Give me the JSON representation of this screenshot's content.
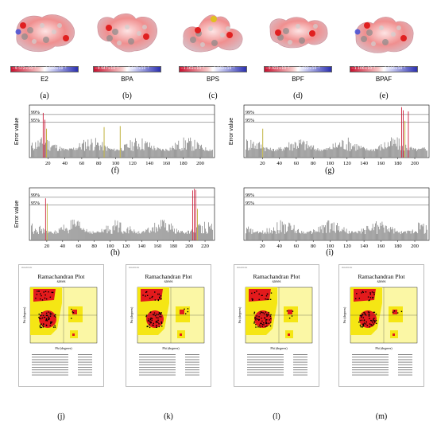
{
  "molecules": [
    {
      "name": "E2",
      "min": "−9.572×10⁻²",
      "max": "9.588×10⁻²",
      "label": "(a)"
    },
    {
      "name": "BPA",
      "min": "−9.947×10⁻²",
      "max": "9.947×10⁻²",
      "label": "(b)"
    },
    {
      "name": "BPS",
      "min": "−1.163×10⁻¹",
      "max": "1.163×10⁻¹",
      "label": "(c)"
    },
    {
      "name": "BPF",
      "min": "−9.922×10⁻²",
      "max": "9.922×10⁻²",
      "label": "(d)"
    },
    {
      "name": "BPAF",
      "min": "−1.106×10⁻¹",
      "max": "1.106×10⁻¹",
      "label": "(e)"
    }
  ],
  "error_panels": [
    {
      "label": "(f)",
      "ylabel": "Error value",
      "thresholds": [
        "99%",
        "95%"
      ],
      "xticks": [
        "20",
        "40",
        "60",
        "80",
        "100",
        "120",
        "140",
        "160",
        "180",
        "200"
      ],
      "xmax": 215,
      "peaks": [
        {
          "x": 14,
          "h": 0.85
        },
        {
          "x": 16,
          "h": 0.72
        },
        {
          "x": 18,
          "h": 0.55
        },
        {
          "x": 86,
          "h": 0.58
        },
        {
          "x": 105,
          "h": 0.6
        }
      ],
      "red": [
        14,
        16
      ]
    },
    {
      "label": "(g)",
      "ylabel": "Error value",
      "thresholds": [
        "99%",
        "95%"
      ],
      "xticks": [
        "20",
        "40",
        "60",
        "80",
        "100",
        "120",
        "140",
        "160",
        "180",
        "200"
      ],
      "xmax": 215,
      "peaks": [
        {
          "x": 20,
          "h": 0.55
        },
        {
          "x": 184,
          "h": 0.96
        },
        {
          "x": 186,
          "h": 0.9
        },
        {
          "x": 188,
          "h": 0.7
        },
        {
          "x": 192,
          "h": 0.88
        }
      ],
      "red": [
        184,
        186,
        192
      ]
    },
    {
      "label": "(h)",
      "ylabel": "Error value",
      "thresholds": [
        "99%",
        "95%"
      ],
      "xticks": [
        "20",
        "40",
        "60",
        "80",
        "100",
        "120",
        "140",
        "160",
        "180",
        "200",
        "220"
      ],
      "xmax": 230,
      "peaks": [
        {
          "x": 18,
          "h": 0.8
        },
        {
          "x": 20,
          "h": 0.7
        },
        {
          "x": 204,
          "h": 0.95
        },
        {
          "x": 206,
          "h": 0.98
        },
        {
          "x": 208,
          "h": 0.96
        },
        {
          "x": 210,
          "h": 0.6
        }
      ],
      "red": [
        18,
        204,
        206,
        208
      ]
    },
    {
      "label": "(i)",
      "ylabel": "",
      "thresholds": [
        "99%",
        "95%"
      ],
      "xticks": [
        "20",
        "40",
        "60",
        "80",
        "100",
        "120",
        "140",
        "160",
        "180",
        "200"
      ],
      "xmax": 215,
      "peaks": [],
      "red": []
    }
  ],
  "rama_panels": [
    {
      "label": "(j)",
      "title": "Ramachandran Plot",
      "subtitle": "saves",
      "xlabel": "Phi (degrees)",
      "ylabel": "Psi (degrees)",
      "header": "PROCHECK"
    },
    {
      "label": "(k)",
      "title": "Ramachandran Plot",
      "subtitle": "saves",
      "xlabel": "Phi (degrees)",
      "ylabel": "Psi (degrees)",
      "header": "PROCHECK"
    },
    {
      "label": "(l)",
      "title": "Ramachandran Plot",
      "subtitle": "saves",
      "xlabel": "Phi (degrees)",
      "ylabel": "Psi (degrees)",
      "header": "PROCHECK"
    },
    {
      "label": "(m)",
      "title": "Ramachandran Plot",
      "subtitle": "saves",
      "xlabel": "Phi (degrees)",
      "ylabel": "Psi (degrees)",
      "header": "PROCHECK"
    }
  ],
  "colors": {
    "red_peak": "#c8102e",
    "olive_bar": "#b5a51d",
    "gray_bar": "#8c8c8c",
    "core_red": "#e31a1c",
    "allowed_yellow": "#f5e614",
    "gen_yellow": "#fbf7a5"
  }
}
